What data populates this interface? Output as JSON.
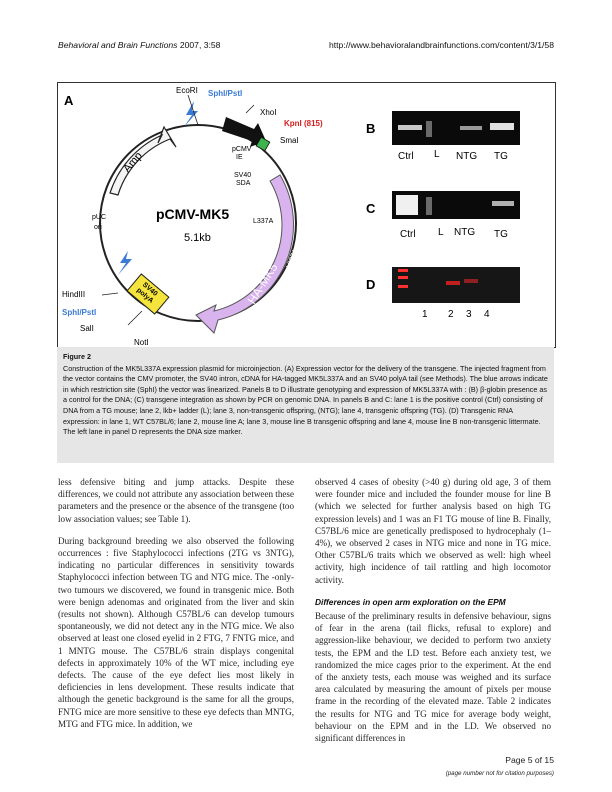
{
  "header": {
    "journal": "Behavioral and Brain Functions",
    "citation": " 2007, 3:58",
    "url": "http://www.behavioralandbrainfunctions.com/content/3/1/58"
  },
  "figure": {
    "panel_a": "A",
    "panel_b": "B",
    "panel_c": "C",
    "panel_d": "D",
    "plasmid_name": "pCMV-MK5",
    "plasmid_subscript": "L337A",
    "plasmid_size": "5.1kb",
    "site_ecori": "EcoRI",
    "site_sphi_pst_top": "SphI/PstI",
    "site_xhoi": "XhoI",
    "site_kpni": "KpnI (815)",
    "site_smai": "SmaI",
    "site_hindiii": "HindIII",
    "site_sphi_pst_bottom": "SphI/PstI",
    "site_sali": "SalI",
    "site_noti": "NotI",
    "feature_amp": "Amp",
    "feature_pcmv": "pCMV",
    "feature_ie": "IE",
    "feature_sv40_sda": "SV40",
    "feature_sda": "SDA",
    "feature_puc": "pUC",
    "feature_ori": "ori",
    "feature_polya_1": "SV40",
    "feature_polya_2": "polyA",
    "feature_ha": "HA-MK5",
    "feature_ha_sub": "L337A",
    "gel_b_labels": [
      "Ctrl",
      "L",
      "NTG",
      "TG"
    ],
    "gel_c_labels": [
      "Ctrl",
      "L",
      "NTG",
      "TG"
    ],
    "gel_d_labels": [
      "1",
      "2",
      "3",
      "4"
    ]
  },
  "caption": {
    "label": "Figure 2",
    "text": "Construction of the MK5L337A expression plasmid for microinjection. (A) Expression vector for the delivery of the transgene. The injected fragment from the vector contains the CMV promoter, the SV40 intron, cDNA for HA-tagged MK5L337A and an SV40 polyA tail (see Methods). The blue arrows indicate in which restriction site (SphI) the vector was linearized. Panels B to D illustrate genotyping and expression of MK5L337A with : (B) β-globin presence as a control for the DNA; (C) transgene integration as shown by PCR on genomic DNA. In panels B and C: lane 1 is the positive control (Ctrl) consisting of DNA from a TG mouse; lane 2, lkb+ ladder (L); lane 3, non-transgenic offspring, (NTG); lane 4, transgenic offspring (TG). (D) Transgenic RNA expression: in lane 1, WT C57BL/6; lane 2, mouse line A; lane 3, mouse line B transgenic offspring and lane 4, mouse line B non-transgenic littermate. The left lane in panel D represents the DNA size marker."
  },
  "body": {
    "left_p1": "less defensive biting and jump attacks. Despite these differences, we could not attribute any association between these parameters and the presence or the absence of the transgene (too low association values; see Table 1).",
    "left_p2": "During background breeding we also observed the following occurrences : five Staphylococci infections (2TG vs 3NTG), indicating no particular differences in sensitivity towards Staphylococci infection between TG and NTG mice. The -only- two tumours we discovered, we found in transgenic mice. Both were benign adenomas and originated from the liver and skin (results not shown). Although C57BL/6 can develop tumours spontaneously, we did not detect any in the NTG mice. We also observed at least one closed eyelid in 2 FTG, 7 FNTG mice, and 1 MNTG mouse. The C57BL/6 strain displays congenital defects in approximately 10% of the WT mice, including eye defects. The cause of the eye defect lies most likely in deficiencies in lens development. These results indicate that although the genetic background is the same for all the groups, FNTG mice are more sensitive to these eye defects than MNTG, MTG and FTG mice. In addition, we",
    "right_p1": "observed 4 cases of obesity (>40 g) during old age, 3 of them were founder mice and included the founder mouse for line B (which we selected for further analysis based on high TG expression levels) and 1 was an F1 TG mouse of line B. Finally, C57BL/6 mice are genetically predisposed to hydrocephaly (1–4%), we observed 2 cases in NTG mice and none in TG mice. Other C57BL/6 traits which we observed as well: high wheel activity, high incidence of tail rattling and high locomotor activity.",
    "section_title": "Differences in open arm exploration on the EPM",
    "right_p2": "Because of the preliminary results in defensive behaviour, signs of fear in the arena (tail flicks, refusal to explore) and aggression-like behaviour, we decided to perform two anxiety tests, the EPM and the LD test. Before each anxiety test, we randomized the mice cages prior to the experiment. At the end of the anxiety tests, each mouse was weighed and its surface area calculated by measuring the amount of pixels per mouse frame in the recording of the elevated maze. Table 2 indicates the results for NTG and TG mice for average body weight, behaviour on the EPM and in the LD. We observed no significant differences in"
  },
  "footer": {
    "page": "Page 5 of 15",
    "note": "(page number not for citation purposes)"
  }
}
